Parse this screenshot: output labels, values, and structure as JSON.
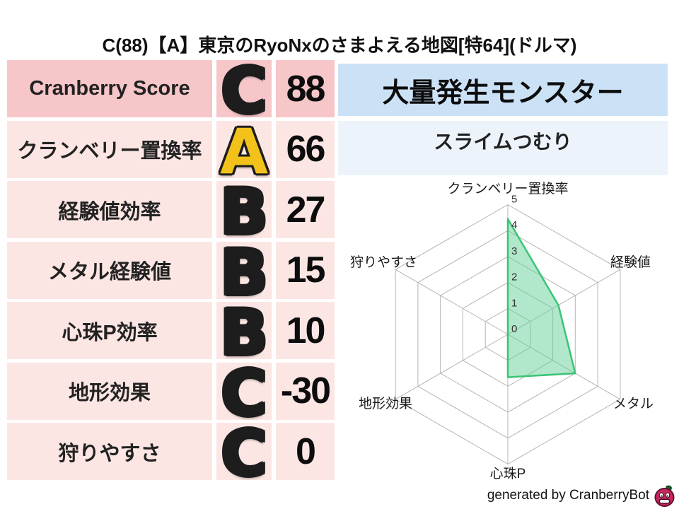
{
  "title": "C(88)【A】東京のRyoNxのさまよえる地図[特64](ドルマ)",
  "score_table": {
    "rows": [
      {
        "label": "Cranberry Score",
        "grade": "C",
        "grade_style": "silver",
        "value": "88"
      },
      {
        "label": "クランベリー置換率",
        "grade": "A",
        "grade_style": "gold",
        "value": "66"
      },
      {
        "label": "経験値効率",
        "grade": "B",
        "grade_style": "silver",
        "value": "27"
      },
      {
        "label": "メタル経験値",
        "grade": "B",
        "grade_style": "silver",
        "value": "15"
      },
      {
        "label": "心珠P効率",
        "grade": "B",
        "grade_style": "silver",
        "value": "10"
      },
      {
        "label": "地形効果",
        "grade": "C",
        "grade_style": "silver",
        "value": "-30"
      },
      {
        "label": "狩りやすさ",
        "grade": "C",
        "grade_style": "silver",
        "value": "0"
      }
    ]
  },
  "monster_panel": {
    "header": "大量発生モンスター",
    "monster_name": "スライムつむり"
  },
  "chart_data": {
    "type": "radar",
    "axes": [
      "クランベリー置換率",
      "経験値",
      "メタル",
      "心珠P",
      "地形効果",
      "狩りやすさ"
    ],
    "values": [
      4.45,
      2.25,
      3.0,
      1.65,
      0,
      0
    ],
    "ticks": [
      0,
      1,
      2,
      3,
      4,
      5
    ],
    "rmax": 5,
    "grid": true,
    "legend": "none",
    "fill_color": "#63d095",
    "stroke_color": "#3cc377",
    "grid_color": "#b5b5b5"
  },
  "footer": {
    "credit": "generated by CranberryBot",
    "icon": "cranberry-bot-icon"
  },
  "colors": {
    "row_header_pink": "#f7c6c9",
    "row_pink": "#fce6e4",
    "monster_header_blue": "#cbe1f6",
    "monster_row_blue": "#edf3fa",
    "radar_fill": "#63d095",
    "radar_stroke": "#3cc377",
    "radar_grid": "#b5b5b5",
    "berry_body": "#c9265e",
    "berry_outline": "#611031",
    "berry_leaf": "#1e5c2a",
    "text": "#1a1a1a"
  }
}
